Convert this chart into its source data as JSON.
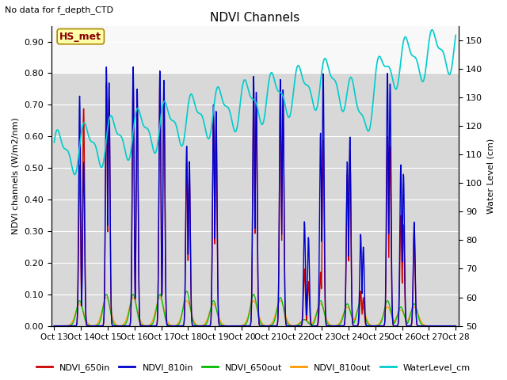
{
  "title": "NDVI Channels",
  "top_left_text": "No data for f_depth_CTD",
  "annotation_text": "HS_met",
  "ylabel_left": "NDVI channels (W/m2/nm)",
  "ylabel_right": "Water Level (cm)",
  "ylim_left": [
    0.0,
    0.95
  ],
  "ylim_right": [
    50,
    155
  ],
  "yticks_left": [
    0.0,
    0.1,
    0.2,
    0.3,
    0.4,
    0.5,
    0.6,
    0.7,
    0.8,
    0.9
  ],
  "yticks_right": [
    50,
    60,
    70,
    80,
    90,
    100,
    110,
    120,
    130,
    140,
    150
  ],
  "xtick_labels": [
    "Oct 13",
    "Oct 14",
    "Oct 15",
    "Oct 16",
    "Oct 17",
    "Oct 18",
    "Oct 19",
    "Oct 20",
    "Oct 21",
    "Oct 22",
    "Oct 23",
    "Oct 24",
    "Oct 25",
    "Oct 26",
    "Oct 27",
    "Oct 28"
  ],
  "colors": {
    "NDVI_650in": "#cc0000",
    "NDVI_810in": "#0000cc",
    "NDVI_650out": "#00bb00",
    "NDVI_810out": "#ff9900",
    "WaterLevel_cm": "#00cccc",
    "annotation_bg": "#ffffaa",
    "annotation_border": "#aa8800",
    "annotation_text": "#880000",
    "gray_band": "#d8d8d8",
    "white_band": "#f8f8f8"
  },
  "gray_band_ylim": [
    0.0,
    0.8
  ],
  "legend_labels": [
    "NDVI_650in",
    "NDVI_810in",
    "NDVI_650out",
    "NDVI_810out",
    "WaterLevel_cm"
  ]
}
